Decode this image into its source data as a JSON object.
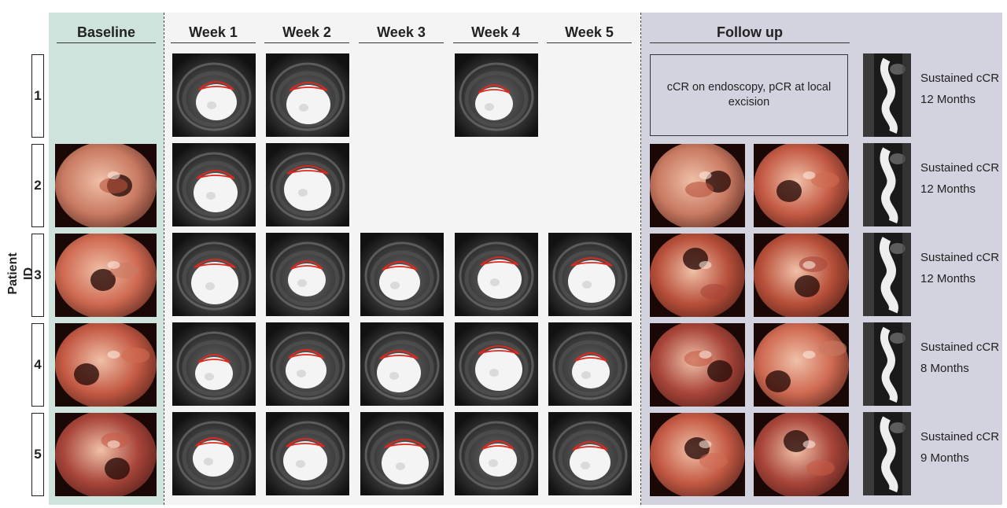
{
  "y_axis_label": "Patient ID",
  "columns": {
    "baseline": "Baseline",
    "weeks": [
      "Week 1",
      "Week 2",
      "Week 3",
      "Week 4",
      "Week 5"
    ],
    "follow_up": "Follow up"
  },
  "colors": {
    "baseline_bg": "#cfe3dd",
    "weeks_bg": "#f4f4f4",
    "follow_up_bg": "#d3d3df",
    "tumor_contour": "#e0281e"
  },
  "patients": [
    {
      "id": "1",
      "status": "Sustained cCR",
      "duration": "12 Months",
      "note": "cCR on endoscopy, pCR at local excision",
      "mri_weeks": [
        1,
        2,
        4
      ]
    },
    {
      "id": "2",
      "status": "Sustained cCR",
      "duration": "12 Months",
      "mri_weeks": [
        1,
        2
      ]
    },
    {
      "id": "3",
      "status": "Sustained cCR",
      "duration": "12 Months",
      "mri_weeks": [
        1,
        2,
        3,
        4,
        5
      ]
    },
    {
      "id": "4",
      "status": "Sustained cCR",
      "duration": "8 Months",
      "mri_weeks": [
        1,
        2,
        3,
        4,
        5
      ]
    },
    {
      "id": "5",
      "status": "Sustained cCR",
      "duration": "9 Months",
      "mri_weeks": [
        1,
        2,
        3,
        4,
        5
      ]
    }
  ]
}
